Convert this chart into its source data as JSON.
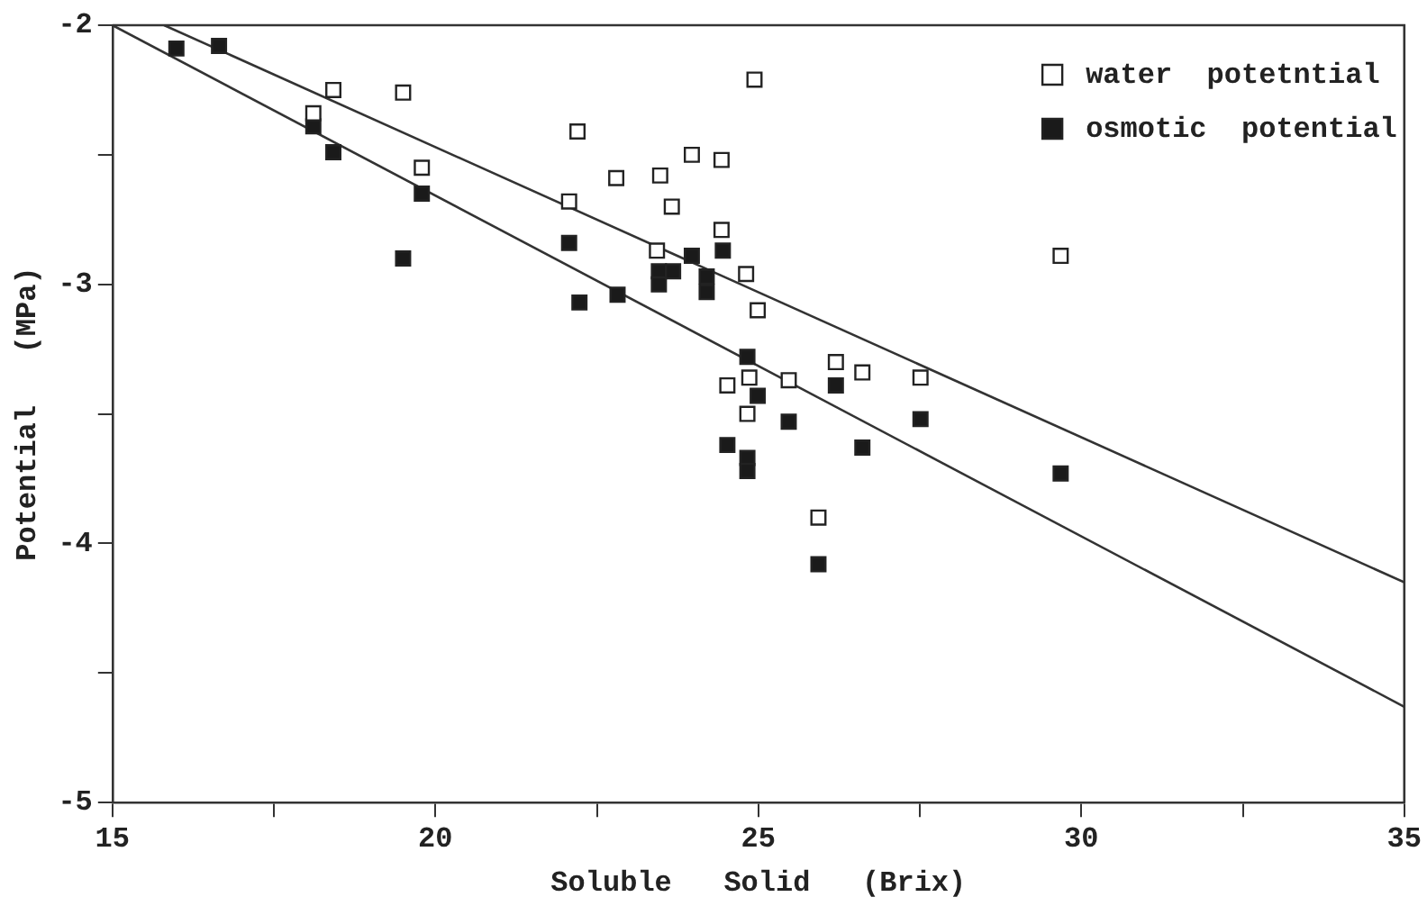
{
  "chart_data": {
    "type": "scatter",
    "xlabel": "Soluble   Solid   (Brix)",
    "ylabel": "Potential   (MPa)",
    "xlim": [
      15,
      35
    ],
    "xticks": [
      15,
      {
        "value": 17.5,
        "label": null
      },
      20,
      {
        "value": 22.5,
        "label": null
      },
      25,
      {
        "value": 27.5,
        "label": null
      },
      30,
      {
        "value": 32.5,
        "label": null
      },
      35
    ],
    "ylim": [
      -5,
      -2
    ],
    "yticks": [
      -5,
      {
        "value": -4.5,
        "label": null
      },
      -4,
      {
        "value": -3.5,
        "label": null
      },
      -3,
      {
        "value": -2.5,
        "label": null
      },
      -2
    ],
    "grid": false,
    "legend": "top right",
    "marker": "square",
    "series": [
      {
        "name": "water  potetntial",
        "color": "#ffffff",
        "x": [
          18.42,
          18.11,
          19.5,
          19.79,
          22.2,
          22.07,
          22.8,
          23.48,
          23.97,
          24.43,
          23.66,
          24.94,
          24.43,
          23.43,
          24.81,
          24.99,
          26.2,
          26.61,
          27.51,
          29.68,
          24.52,
          24.86,
          25.47,
          24.83,
          25.93
        ],
        "values": [
          -2.25,
          -2.34,
          -2.26,
          -2.55,
          -2.41,
          -2.68,
          -2.59,
          -2.58,
          -2.5,
          -2.52,
          -2.7,
          -2.21,
          -2.79,
          -2.87,
          -2.96,
          -3.1,
          -3.3,
          -3.34,
          -3.36,
          -2.89,
          -3.39,
          -3.36,
          -3.37,
          -3.5,
          -3.9
        ]
      },
      {
        "name": "osmotic  potential",
        "color": "#1a1a1a",
        "x": [
          15.99,
          16.65,
          18.11,
          18.42,
          19.5,
          19.79,
          22.07,
          22.23,
          22.82,
          23.46,
          23.46,
          23.68,
          23.97,
          24.2,
          24.2,
          24.45,
          24.83,
          24.99,
          26.2,
          25.47,
          27.51,
          24.52,
          24.83,
          24.83,
          26.61,
          29.68,
          25.93
        ],
        "values": [
          -2.09,
          -2.08,
          -2.39,
          -2.49,
          -2.9,
          -2.65,
          -2.84,
          -3.07,
          -3.04,
          -2.95,
          -3.0,
          -2.95,
          -2.89,
          -2.97,
          -3.03,
          -2.87,
          -3.28,
          -3.43,
          -3.39,
          -3.53,
          -3.52,
          -3.62,
          -3.67,
          -3.72,
          -3.63,
          -3.73,
          -4.08
        ]
      },
      {
        "type": "line",
        "marker": "none",
        "color": "#333333",
        "x": [
          15.8,
          35
        ],
        "values": [
          -2,
          -4.15
        ]
      },
      {
        "type": "line",
        "marker": "none",
        "color": "#333333",
        "x": [
          15,
          35
        ],
        "values": [
          -2,
          -4.63
        ]
      }
    ]
  }
}
